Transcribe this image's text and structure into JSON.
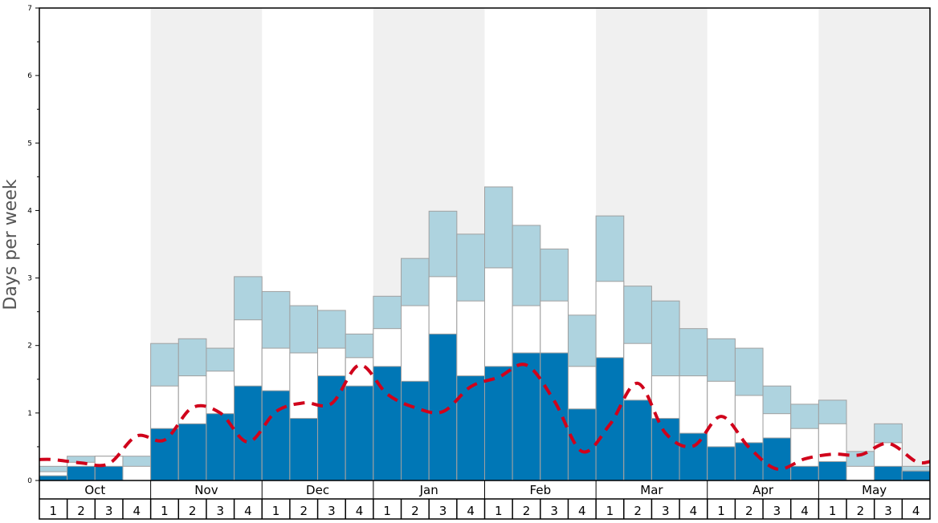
{
  "chart_data": {
    "type": "bar",
    "ylabel": "Days per week",
    "ylim": [
      0,
      7
    ],
    "yticks": [
      "0",
      "1",
      "2",
      "3",
      "4",
      "5",
      "6",
      "7"
    ],
    "months": [
      "Oct",
      "Nov",
      "Dec",
      "Jan",
      "Feb",
      "Mar",
      "Apr",
      "May"
    ],
    "shaded_months": [
      "Nov",
      "Jan",
      "Mar",
      "May"
    ],
    "weeks": [
      "1",
      "2",
      "3",
      "4"
    ],
    "colors": {
      "dark": "#0077b6",
      "middle": "#ffffff",
      "light": "#aed3df",
      "line": "#d0021b",
      "shade": "#f0f0f0"
    },
    "stack_layers_cumulative": {
      "dark": [
        0.07,
        0.21,
        0.21,
        0.0,
        0.77,
        0.84,
        0.99,
        1.4,
        1.33,
        0.92,
        1.55,
        1.4,
        1.69,
        1.47,
        2.17,
        1.55,
        1.69,
        1.89,
        1.89,
        1.06,
        1.82,
        1.19,
        0.92,
        0.7,
        0.5,
        0.56,
        0.63,
        0.21,
        0.28,
        0.0,
        0.21,
        0.14
      ],
      "middle": [
        0.13,
        0.27,
        0.36,
        0.21,
        1.4,
        1.55,
        1.62,
        2.38,
        1.96,
        1.89,
        1.96,
        1.82,
        2.25,
        2.59,
        3.02,
        2.66,
        3.15,
        2.59,
        2.66,
        1.69,
        2.95,
        2.03,
        1.55,
        1.55,
        1.47,
        1.26,
        0.99,
        0.77,
        0.84,
        0.21,
        0.56,
        0.14
      ],
      "light": [
        0.21,
        0.36,
        0.36,
        0.36,
        2.03,
        2.1,
        1.96,
        3.02,
        2.8,
        2.59,
        2.52,
        2.17,
        2.73,
        3.29,
        3.99,
        3.65,
        4.35,
        3.78,
        3.43,
        2.45,
        3.92,
        2.88,
        2.66,
        2.25,
        2.1,
        1.96,
        1.4,
        1.13,
        1.19,
        0.43,
        0.84,
        0.21
      ]
    },
    "line": {
      "style": "dashed",
      "values": [
        0.31,
        0.26,
        0.25,
        0.66,
        0.6,
        1.08,
        1.0,
        0.57,
        1.02,
        1.15,
        1.14,
        1.71,
        1.28,
        1.08,
        1.02,
        1.39,
        1.53,
        1.71,
        1.18,
        0.43,
        0.83,
        1.44,
        0.7,
        0.51,
        0.95,
        0.49,
        0.17,
        0.32,
        0.39,
        0.38,
        0.55,
        0.28
      ]
    },
    "grid": false
  }
}
